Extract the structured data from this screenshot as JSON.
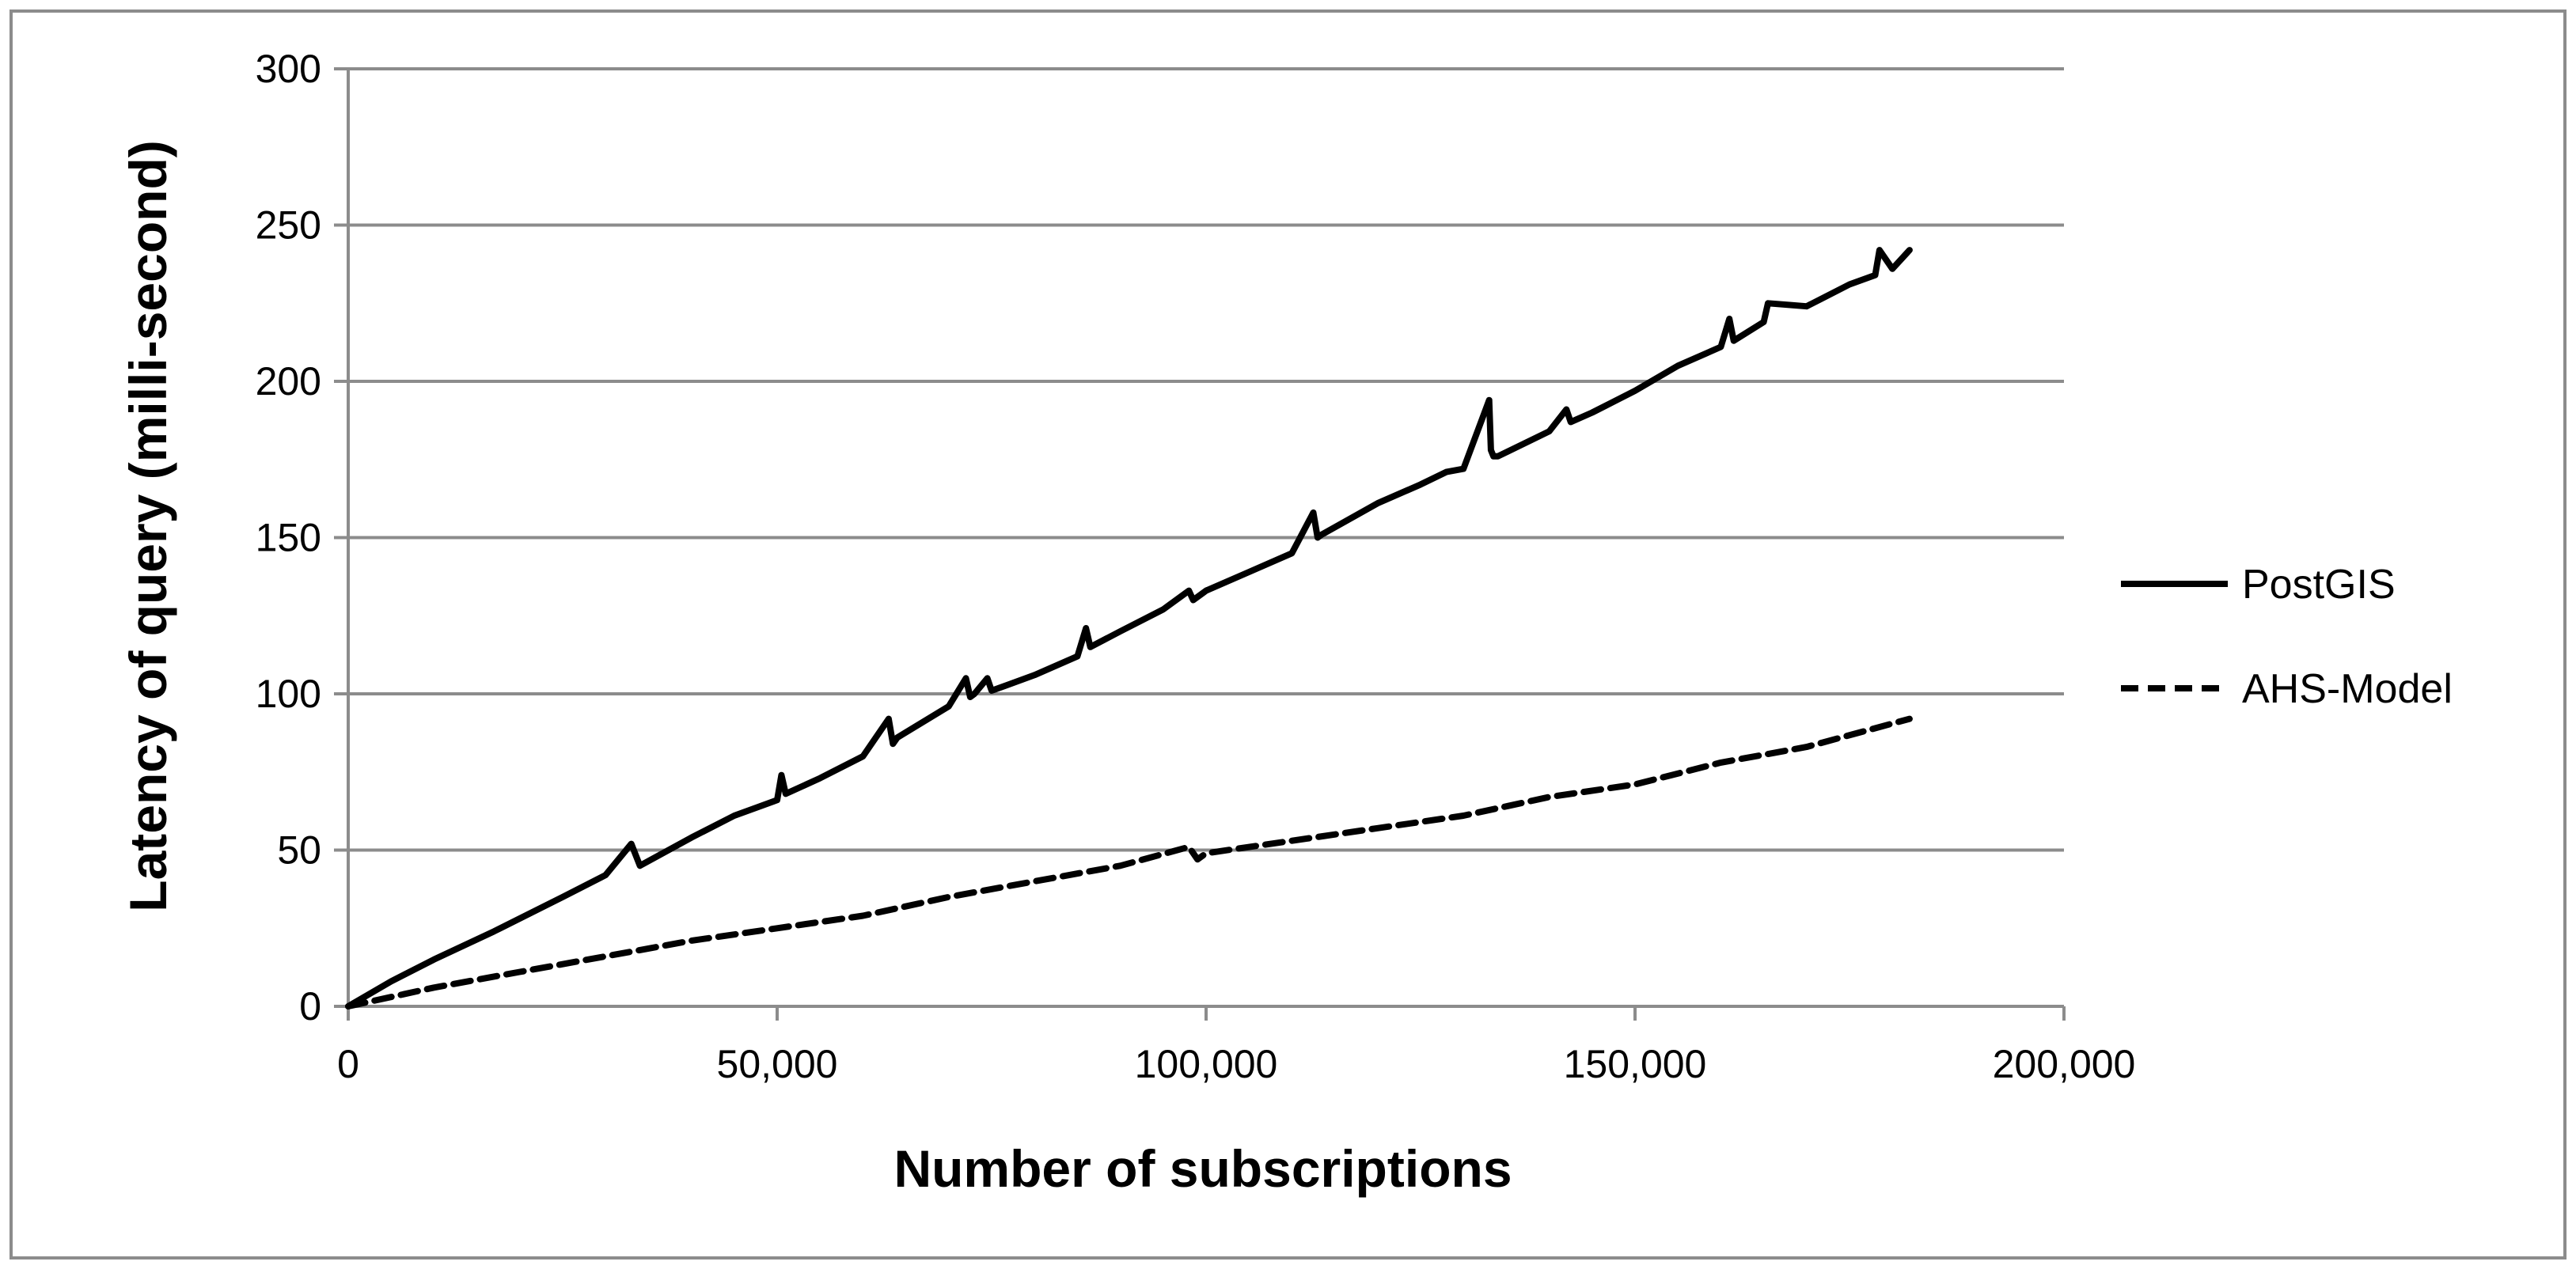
{
  "chart_data": {
    "type": "line",
    "title": "",
    "xlabel": "Number of subscriptions",
    "ylabel": "Latency of query (milli-second)",
    "xlim": [
      0,
      200000
    ],
    "ylim": [
      0,
      300
    ],
    "x_ticks": [
      0,
      50000,
      100000,
      150000,
      200000
    ],
    "x_tick_labels": [
      "0",
      "50,000",
      "100,000",
      "150,000",
      "200,000"
    ],
    "y_ticks": [
      0,
      50,
      100,
      150,
      200,
      250,
      300
    ],
    "y_tick_labels": [
      "0",
      "50",
      "100",
      "150",
      "200",
      "250",
      "300"
    ],
    "grid": "horizontal",
    "legend_position": "right",
    "series": [
      {
        "name": "PostGIS",
        "style": "solid",
        "color": "#000000",
        "x": [
          0,
          5000,
          10000,
          17000,
          25000,
          30000,
          33000,
          34000,
          40000,
          45000,
          50000,
          50500,
          51000,
          55000,
          60000,
          63000,
          63500,
          64000,
          70000,
          72000,
          72500,
          73000,
          74500,
          75000,
          80000,
          85000,
          86000,
          86500,
          90000,
          95000,
          98000,
          98500,
          100000,
          105000,
          110000,
          112500,
          113000,
          113500,
          120000,
          125000,
          128000,
          130000,
          133000,
          133200,
          133500,
          134000,
          140000,
          142000,
          142500,
          145000,
          150000,
          155000,
          160000,
          161000,
          161500,
          165000,
          165500,
          170000,
          175000,
          178000,
          178500,
          180000,
          182000
        ],
        "y": [
          0,
          8,
          15,
          24,
          35,
          42,
          52,
          45,
          54,
          61,
          66,
          74,
          68,
          73,
          80,
          92,
          84,
          86,
          96,
          105,
          99,
          100,
          105,
          101,
          106,
          112,
          121,
          115,
          120,
          127,
          133,
          130,
          133,
          139,
          145,
          158,
          150,
          151,
          161,
          167,
          171,
          172,
          194,
          178,
          176,
          176,
          184,
          191,
          187,
          190,
          197,
          205,
          211,
          220,
          213,
          219,
          225,
          224,
          231,
          234,
          242,
          236,
          242
        ]
      },
      {
        "name": "AHS-Model",
        "style": "dashed",
        "color": "#000000",
        "x": [
          0,
          10000,
          20000,
          30000,
          40000,
          50000,
          60000,
          70000,
          80000,
          90000,
          98000,
          99000,
          100000,
          110000,
          120000,
          130000,
          140000,
          150000,
          160000,
          170000,
          182000
        ],
        "y": [
          0,
          6,
          11,
          16,
          21,
          25,
          29,
          35,
          40,
          45,
          51,
          47,
          49,
          53,
          57,
          61,
          67,
          71,
          78,
          83,
          92
        ]
      }
    ]
  }
}
